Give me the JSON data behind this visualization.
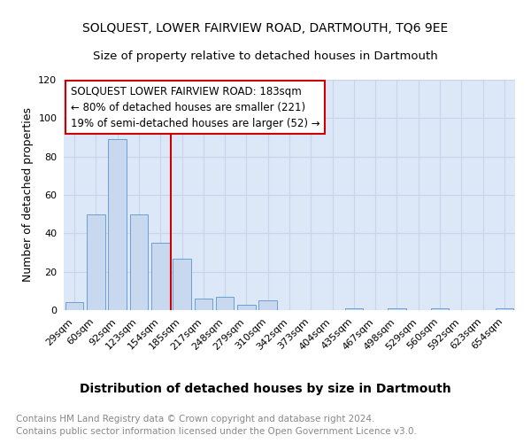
{
  "title1": "SOLQUEST, LOWER FAIRVIEW ROAD, DARTMOUTH, TQ6 9EE",
  "title2": "Size of property relative to detached houses in Dartmouth",
  "xlabel": "Distribution of detached houses by size in Dartmouth",
  "ylabel": "Number of detached properties",
  "categories": [
    "29sqm",
    "60sqm",
    "92sqm",
    "123sqm",
    "154sqm",
    "185sqm",
    "217sqm",
    "248sqm",
    "279sqm",
    "310sqm",
    "342sqm",
    "373sqm",
    "404sqm",
    "435sqm",
    "467sqm",
    "498sqm",
    "529sqm",
    "560sqm",
    "592sqm",
    "623sqm",
    "654sqm"
  ],
  "values": [
    4,
    50,
    89,
    50,
    35,
    27,
    6,
    7,
    3,
    5,
    0,
    0,
    0,
    1,
    0,
    1,
    0,
    1,
    0,
    0,
    1
  ],
  "bar_color": "#c8d8ee",
  "bar_edge_color": "#6a9fd4",
  "vline_index": 5,
  "vline_color": "#cc0000",
  "annotation_lines": [
    "SOLQUEST LOWER FAIRVIEW ROAD: 183sqm",
    "← 80% of detached houses are smaller (221)",
    "19% of semi-detached houses are larger (52) →"
  ],
  "annotation_box_color": "#cc0000",
  "ylim": [
    0,
    120
  ],
  "yticks": [
    0,
    20,
    40,
    60,
    80,
    100,
    120
  ],
  "grid_color": "#c8d4e8",
  "bg_color": "#dce8f8",
  "footer_text": "Contains HM Land Registry data © Crown copyright and database right 2024.\nContains public sector information licensed under the Open Government Licence v3.0.",
  "title_fontsize": 10,
  "subtitle_fontsize": 9.5,
  "xlabel_fontsize": 10,
  "ylabel_fontsize": 9,
  "tick_fontsize": 8,
  "annotation_fontsize": 8.5,
  "footer_fontsize": 7.5
}
